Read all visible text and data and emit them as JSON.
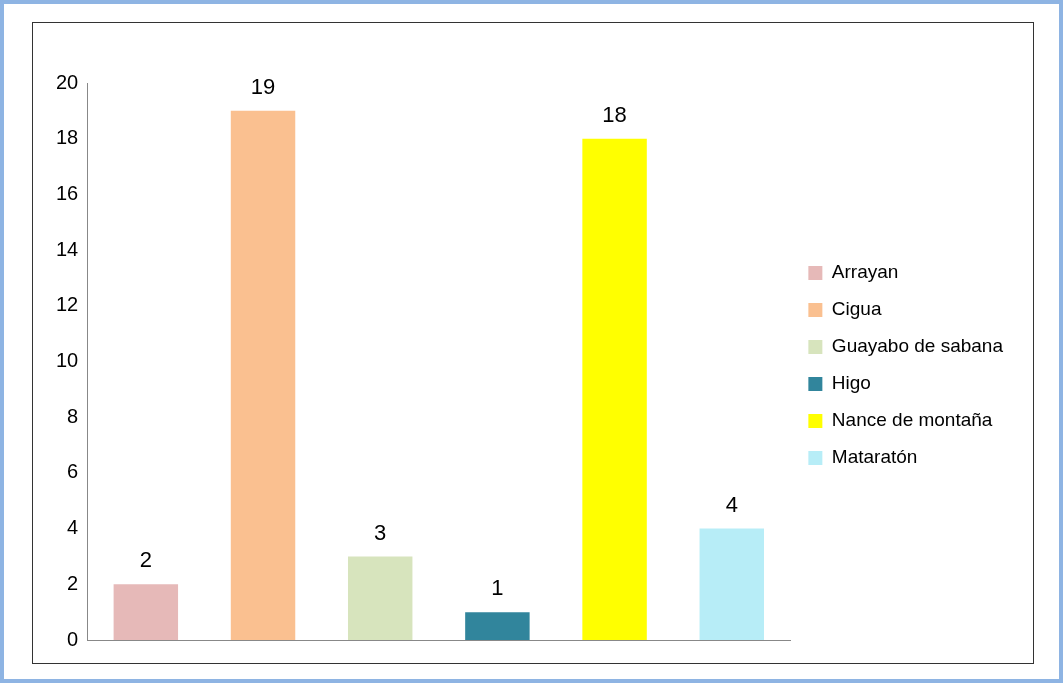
{
  "chart_data": {
    "type": "bar",
    "categories": [
      null
    ],
    "series": [
      {
        "name": "Arrayan",
        "color": "#e6b9b8",
        "values": [
          2
        ]
      },
      {
        "name": "Cigua",
        "color": "#fac090",
        "values": [
          19
        ]
      },
      {
        "name": "Guayabo de sabana",
        "color": "#d7e4bd",
        "values": [
          3
        ]
      },
      {
        "name": "Higo",
        "color": "#31859c",
        "values": [
          1
        ]
      },
      {
        "name": "Nance de montaña",
        "color": "#ffff00",
        "values": [
          18
        ]
      },
      {
        "name": "Mataratón",
        "color": "#b7edf7",
        "values": [
          4
        ]
      }
    ],
    "ylim": [
      0,
      20
    ],
    "yticks": [
      0,
      2,
      4,
      6,
      8,
      10,
      12,
      14,
      16,
      18,
      20
    ],
    "grid": false,
    "legend": "right",
    "data_labels": true,
    "tick_labels": "y"
  }
}
